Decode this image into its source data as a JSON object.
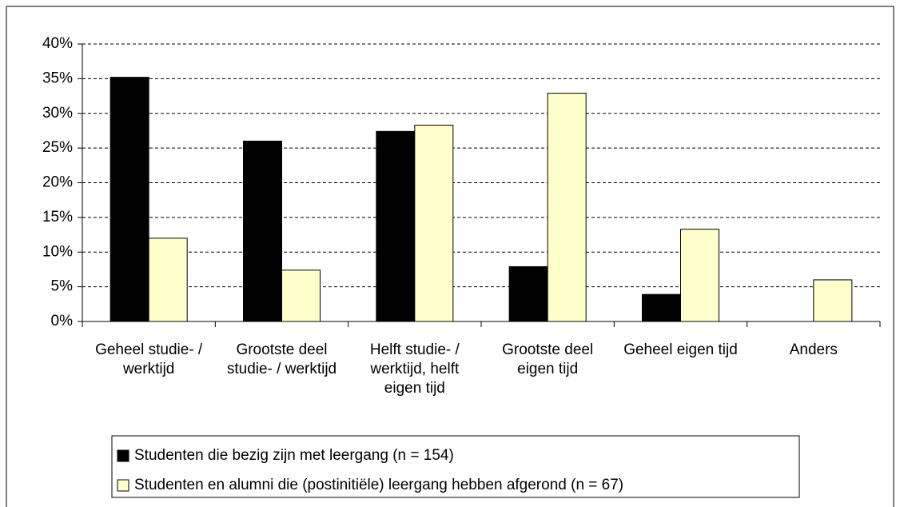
{
  "chart_data": {
    "type": "bar",
    "categories": [
      "Geheel studie- / werktijd",
      "Grootste deel studie- / werktijd",
      "Helft studie- / werktijd, helft eigen tijd",
      "Grootste deel eigen tijd",
      "Geheel eigen tijd",
      "Anders"
    ],
    "series": [
      {
        "name": "Studenten die bezig zijn met leergang (n = 154)",
        "color": "#000000",
        "values": [
          35.2,
          26,
          27.4,
          7.9,
          3.9,
          0
        ]
      },
      {
        "name": "Studenten en alumni die (postinitiële) leergang hebben afgerond (n = 67)",
        "color": "#ffffcc",
        "values": [
          12,
          7.4,
          28.3,
          32.9,
          13.3,
          6.0
        ]
      }
    ],
    "ylim": [
      0,
      40
    ],
    "yticks": [
      {
        "value": 0,
        "label": "0%"
      },
      {
        "value": 5,
        "label": "5%"
      },
      {
        "value": 10,
        "label": "10%"
      },
      {
        "value": 15,
        "label": "15%"
      },
      {
        "value": 20,
        "label": "20%"
      },
      {
        "value": 25,
        "label": "25%"
      },
      {
        "value": 30,
        "label": "30%"
      },
      {
        "value": 35,
        "label": "35%"
      },
      {
        "value": 40,
        "label": "40%"
      }
    ],
    "grid": true,
    "legend": "bottom"
  }
}
